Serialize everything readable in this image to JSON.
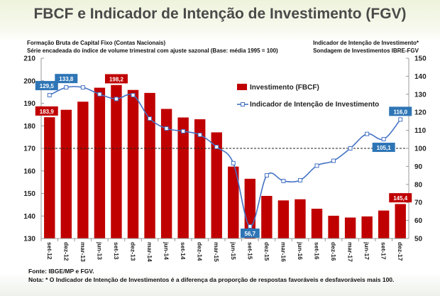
{
  "title": "FBCF e Indicador de Intenção de Investimento (FGV)",
  "left_subtitle": [
    "Formação Bruta de Capital Fixo (Contas Nacionais)",
    "Série encadeada do índice de volume trimestral com ajuste sazonal (Base: média 1995 = 100)"
  ],
  "right_subtitle": [
    "Indicador de Intenção de Investimento*",
    "Sondagem de Investimentos IBRE-FGV"
  ],
  "footer": [
    "Fonte: IBGE/MP e FGV.",
    "Nota: * O Indicador de Intenção de Investimentos é a diferença da proporção  de respostas favoráveis e desfavoráveis mais 100."
  ],
  "chart_data": {
    "type": "bar+line",
    "categories": [
      "set-12",
      "dez-12",
      "mar-13",
      "jun-13",
      "set-13",
      "dez-13",
      "mar-14",
      "jun-14",
      "set-14",
      "dez-14",
      "mar-15",
      "jun-15",
      "set-15",
      "dez-15",
      "mar-16",
      "jun-16",
      "set-16",
      "dez-16",
      "mar-17",
      "jun-17",
      "set-17",
      "dez-17"
    ],
    "series": [
      {
        "name": "Investimento (FBCF)",
        "type": "bar",
        "axis": "left",
        "color": "#c00000",
        "values": [
          183.9,
          187.2,
          190.8,
          197.0,
          198.2,
          196.0,
          194.7,
          187.6,
          183.8,
          183.0,
          177.2,
          162.0,
          156.6,
          149.0,
          147.0,
          147.5,
          143.3,
          140.2,
          139.4,
          139.9,
          142.5,
          145.4
        ],
        "labels": {
          "0": "183,9",
          "4": "198,2",
          "21": "145,4"
        }
      },
      {
        "name": "Indicador de Intenção de Investimento",
        "type": "line",
        "axis": "right",
        "color": "#4472c4",
        "values": [
          129.5,
          133.8,
          133.8,
          130.0,
          127.4,
          129.5,
          116.5,
          111.0,
          109.5,
          107.5,
          100.8,
          91.8,
          56.7,
          85.0,
          81.9,
          82.3,
          90.4,
          93.1,
          100.0,
          108.0,
          105.1,
          116.0
        ],
        "labels": {
          "0": "129,5",
          "1": "133,8",
          "12": "56,7",
          "20": "105,1",
          "21": "116,0"
        },
        "label_color": "#2e75b6"
      }
    ],
    "left_axis": {
      "range": [
        130,
        210
      ],
      "ticks": [
        130,
        140,
        150,
        160,
        170,
        180,
        190,
        200,
        210
      ]
    },
    "right_axis": {
      "range": [
        50,
        150
      ],
      "ticks": [
        50,
        60,
        70,
        80,
        90,
        100,
        110,
        120,
        130,
        140,
        150
      ]
    },
    "reference_line": {
      "axis": "right",
      "value": 100,
      "style": "dashed"
    },
    "legend": "inside-top-right",
    "grid": false
  }
}
